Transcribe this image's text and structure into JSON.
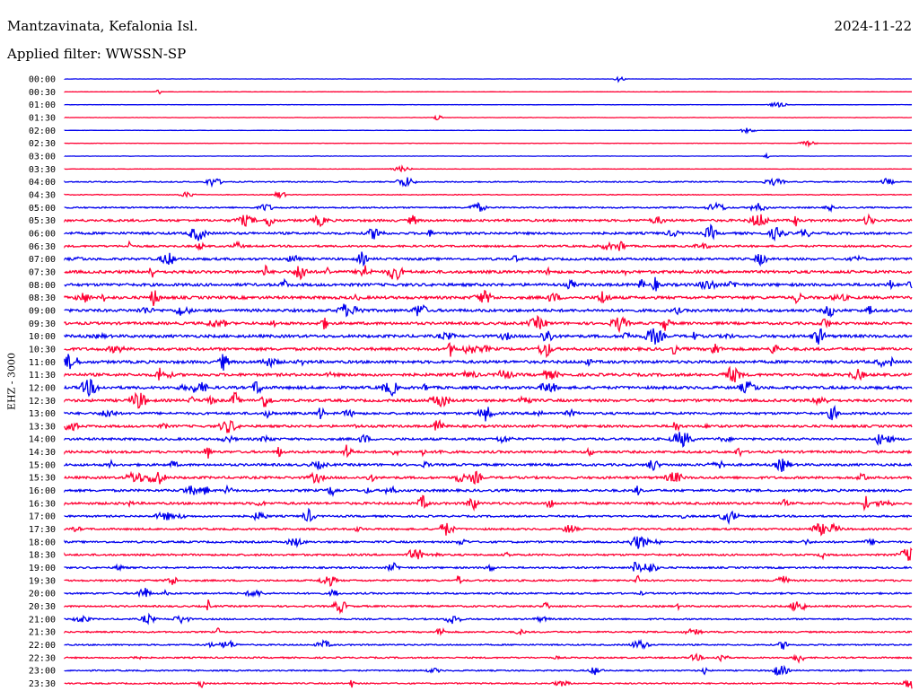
{
  "header": {
    "station": "Mantzavinata, Kefalonia Isl.",
    "date": "2024-11-22",
    "filter": "Applied filter: WWSSN-SP"
  },
  "channel_label": "EHZ - 3000",
  "colors": {
    "trace_blue": "#0000ee",
    "trace_red": "#ff0033"
  },
  "chart_data": {
    "type": "line",
    "title": "",
    "ylabel": "EHZ - 3000",
    "rows": [
      "00:00",
      "00:30",
      "01:00",
      "01:30",
      "02:00",
      "02:30",
      "03:00",
      "03:30",
      "04:00",
      "04:30",
      "05:00",
      "05:30",
      "06:00",
      "06:30",
      "07:00",
      "07:30",
      "08:00",
      "08:30",
      "09:00",
      "09:30",
      "10:00",
      "10:30",
      "11:00",
      "11:30",
      "12:00",
      "12:30",
      "13:00",
      "13:30",
      "14:00",
      "14:30",
      "15:00",
      "15:30",
      "16:00",
      "16:30",
      "17:00",
      "17:30",
      "18:00",
      "18:30",
      "19:00",
      "19:30",
      "20:00",
      "20:30",
      "21:00",
      "21:30",
      "22:00",
      "22:30",
      "23:00",
      "23:30"
    ],
    "row_colors": [
      "blue",
      "red"
    ],
    "noise_level": [
      0.3,
      0.3,
      0.3,
      0.4,
      0.3,
      0.4,
      0.4,
      0.4,
      1.2,
      0.8,
      1.5,
      2.5,
      2.5,
      2.0,
      2.5,
      3.0,
      3.0,
      3.0,
      3.0,
      2.8,
      3.0,
      3.0,
      3.0,
      3.0,
      3.0,
      2.8,
      2.5,
      2.5,
      2.5,
      2.5,
      2.5,
      2.5,
      2.5,
      2.5,
      2.0,
      2.0,
      2.0,
      2.0,
      1.8,
      1.8,
      1.8,
      1.8,
      1.6,
      1.6,
      1.5,
      1.5,
      1.4,
      1.4
    ]
  }
}
